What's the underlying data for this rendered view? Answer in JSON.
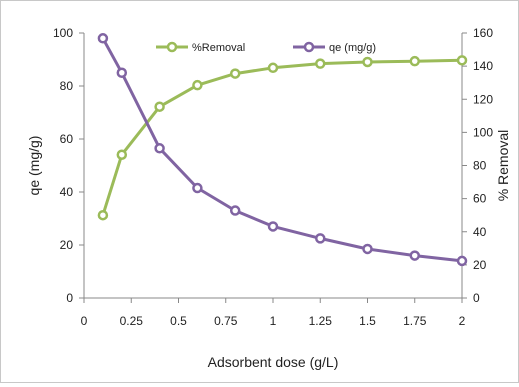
{
  "chart_data": {
    "type": "line",
    "title": "",
    "xlabel": "Adsorbent dose (g/L)",
    "ylabel": "qe (mg/g)",
    "y2label": "% Removal",
    "x_ticks": [
      "0",
      "0.25",
      "0.5",
      "0.75",
      "1",
      "1.25",
      "1.5",
      "1.75",
      "2"
    ],
    "y_ticks": [
      "0",
      "20",
      "40",
      "60",
      "80",
      "100"
    ],
    "y2_ticks": [
      "0",
      "20",
      "40",
      "60",
      "80",
      "100",
      "120",
      "140",
      "160"
    ],
    "xlim": [
      0,
      2
    ],
    "ylim": [
      0,
      100
    ],
    "y2lim": [
      0,
      160
    ],
    "grid": false,
    "legend_position": "top",
    "series": [
      {
        "name": "%Removal",
        "axis": "right",
        "color": "#9BBB59",
        "x": [
          0.1,
          0.2,
          0.4,
          0.6,
          0.8,
          1.0,
          1.25,
          1.5,
          1.75,
          2.0
        ],
        "values": [
          50,
          86.5,
          115.5,
          128.5,
          135.5,
          139,
          141.5,
          142.5,
          143,
          143.5
        ]
      },
      {
        "name": "qe (mg/g)",
        "axis": "left",
        "color": "#8064A2",
        "x": [
          0.1,
          0.2,
          0.4,
          0.6,
          0.8,
          1.0,
          1.25,
          1.5,
          1.75,
          2.0
        ],
        "values": [
          98,
          85,
          56.5,
          41.5,
          33,
          27,
          22.5,
          18.5,
          16,
          14
        ]
      }
    ]
  }
}
